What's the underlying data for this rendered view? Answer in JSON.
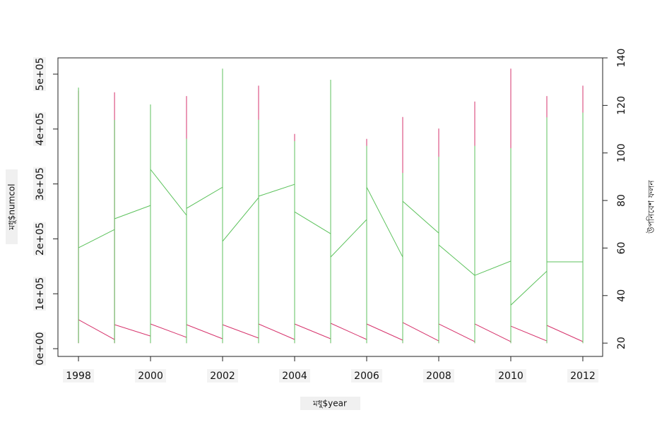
{
  "chart_data": {
    "type": "line",
    "xlabel": "মধু$year",
    "ylabel": "মধু$numcol",
    "y2label": "উপনিবেশ ফলন",
    "xlim": [
      1997.43,
      2012.55
    ],
    "xticks": [
      1998,
      2000,
      2002,
      2004,
      2006,
      2008,
      2010,
      2012
    ],
    "ylim": [
      -14100,
      529600
    ],
    "yticks": [
      {
        "value": 0,
        "label": "0e+00"
      },
      {
        "value": 100000,
        "label": "1e+05"
      },
      {
        "value": 200000,
        "label": "2e+05"
      },
      {
        "value": 300000,
        "label": "3e+05"
      },
      {
        "value": 400000,
        "label": "4e+05"
      },
      {
        "value": 500000,
        "label": "5e+05"
      }
    ],
    "y2lim": [
      14.4,
      140
    ],
    "y2ticks": [
      20,
      40,
      60,
      80,
      100,
      120,
      140
    ],
    "series": [
      {
        "color": "#d6336c",
        "x": [
          1998,
          1998,
          1998,
          1999,
          1999,
          1999,
          1999,
          2000,
          2000,
          2000,
          2000,
          2001,
          2001,
          2001,
          2001,
          2002,
          2002,
          2002,
          2002,
          2003,
          2003,
          2003,
          2003,
          2004,
          2004,
          2004,
          2004,
          2005,
          2005,
          2005,
          2005,
          2006,
          2006,
          2006,
          2006,
          2007,
          2007,
          2007,
          2007,
          2008,
          2008,
          2008,
          2008,
          2009,
          2009,
          2009,
          2009,
          2010,
          2010,
          2010,
          2010,
          2011,
          2011,
          2011,
          2011,
          2012,
          2012,
          2012
        ],
        "values": [
          10000,
          470000,
          52700,
          16700,
          10000,
          467000,
          43700,
          23100,
          10000,
          440000,
          45000,
          20600,
          10000,
          460000,
          43700,
          18000,
          10000,
          500000,
          43700,
          19300,
          10000,
          479000,
          45000,
          16700,
          10000,
          391000,
          45000,
          18000,
          10000,
          480000,
          46300,
          16700,
          10000,
          382000,
          45000,
          15400,
          10000,
          422000,
          47600,
          14100,
          10000,
          401000,
          45000,
          12900,
          10000,
          450000,
          45000,
          12900,
          10000,
          510000,
          41100,
          14100,
          10000,
          460000,
          42400,
          12900,
          10000,
          479000
        ]
      },
      {
        "color": "#5cc25c",
        "axis": "y2",
        "x": [
          1998,
          1998,
          1998,
          1999,
          1999,
          1999,
          1999,
          2000,
          2000,
          2000,
          2000,
          2001,
          2001,
          2001,
          2001,
          2002,
          2002,
          2002,
          2002,
          2003,
          2003,
          2003,
          2003,
          2004,
          2004,
          2004,
          2004,
          2005,
          2005,
          2005,
          2005,
          2006,
          2006,
          2006,
          2006,
          2007,
          2007,
          2007,
          2007,
          2008,
          2008,
          2008,
          2008,
          2009,
          2009,
          2009,
          2009,
          2010,
          2010,
          2010,
          2010,
          2011,
          2011,
          2011,
          2011,
          2012,
          2012,
          2012
        ],
        "values": [
          20,
          127.5,
          60.1,
          67.8,
          20,
          113.9,
          72.3,
          77.9,
          20,
          120.4,
          93.1,
          73.8,
          20,
          106,
          76.7,
          85.6,
          20,
          135.5,
          62.8,
          81.2,
          20,
          114,
          81.8,
          86.8,
          20,
          105,
          75.2,
          66,
          20,
          130.8,
          56.2,
          72,
          20,
          103,
          85.6,
          56.2,
          20,
          91.6,
          79.7,
          66.3,
          20,
          98.4,
          61.3,
          48.5,
          20,
          103,
          48.5,
          54.5,
          20,
          102,
          36,
          50.3,
          20,
          115,
          54.2,
          54.2,
          20,
          117
        ]
      }
    ]
  }
}
